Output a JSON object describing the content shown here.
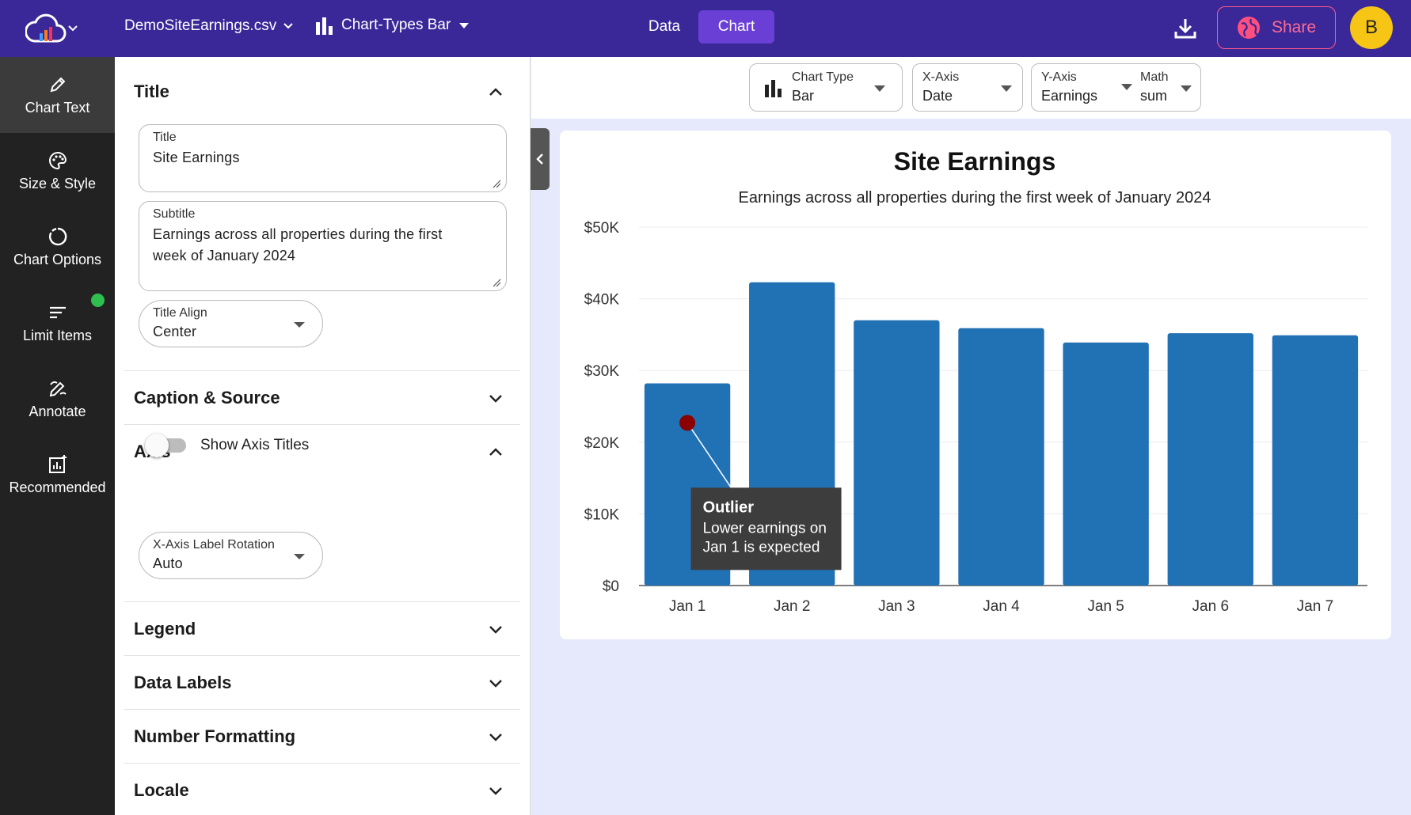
{
  "header": {
    "file_name": "DemoSiteEarnings.csv",
    "chart_type_label": "Chart-Types Bar",
    "tab_data": "Data",
    "tab_chart": "Chart",
    "share_label": "Share",
    "avatar_initial": "B"
  },
  "sidebar": {
    "items": [
      {
        "label": "Chart Text",
        "icon": "pencil-icon"
      },
      {
        "label": "Size & Style",
        "icon": "palette-icon"
      },
      {
        "label": "Chart Options",
        "icon": "circle-options-icon"
      },
      {
        "label": "Limit Items",
        "icon": "limit-lines-icon"
      },
      {
        "label": "Annotate",
        "icon": "annotate-icon"
      },
      {
        "label": "Recommended",
        "icon": "recommended-icon"
      }
    ]
  },
  "panel": {
    "title_section": {
      "heading": "Title",
      "title_field_label": "Title",
      "title_field_value": "Site Earnings",
      "subtitle_field_label": "Subtitle",
      "subtitle_line1": "Earnings across all properties during the first",
      "subtitle_line2": "week of January 2024",
      "align_label": "Title Align",
      "align_value": "Center"
    },
    "caption_heading": "Caption & Source",
    "axis_section": {
      "heading": "Axis",
      "toggle_label": "Show Axis Titles",
      "toggle_on": false,
      "rotation_label": "X-Axis Label Rotation",
      "rotation_value": "Auto"
    },
    "legend_heading": "Legend",
    "data_labels_heading": "Data Labels",
    "number_formatting_heading": "Number Formatting",
    "locale_heading": "Locale"
  },
  "controls": {
    "chart_type_label": "Chart Type",
    "chart_type_value": "Bar",
    "xaxis_label": "X-Axis",
    "xaxis_value": "Date",
    "yaxis_label": "Y-Axis",
    "yaxis_value": "Earnings",
    "math_label": "Math",
    "math_value": "sum"
  },
  "colors": {
    "header_bg": "#3a2899",
    "accent": "#6a3fd6",
    "bar": "#2171b5",
    "annotation_dot": "#8b0000",
    "annotation_bg": "#3d3d3d"
  },
  "chart_data": {
    "type": "bar",
    "title": "Site Earnings",
    "subtitle": "Earnings across all properties during the first week of January 2024",
    "categories": [
      "Jan 1",
      "Jan 2",
      "Jan 3",
      "Jan 4",
      "Jan 5",
      "Jan 6",
      "Jan 7"
    ],
    "values": [
      28200,
      42300,
      37000,
      35900,
      33900,
      35200,
      34900
    ],
    "ylim": [
      0,
      50000
    ],
    "yticks": [
      0,
      10000,
      20000,
      30000,
      40000,
      50000
    ],
    "ytick_labels": [
      "$0",
      "$10K",
      "$20K",
      "$30K",
      "$40K",
      "$50K"
    ],
    "xlabel": "",
    "ylabel": "",
    "grid": true,
    "annotation": {
      "category": "Jan 1",
      "value": 22700,
      "title": "Outlier",
      "line1": "Lower earnings on",
      "line2": "Jan 1 is expected"
    }
  }
}
